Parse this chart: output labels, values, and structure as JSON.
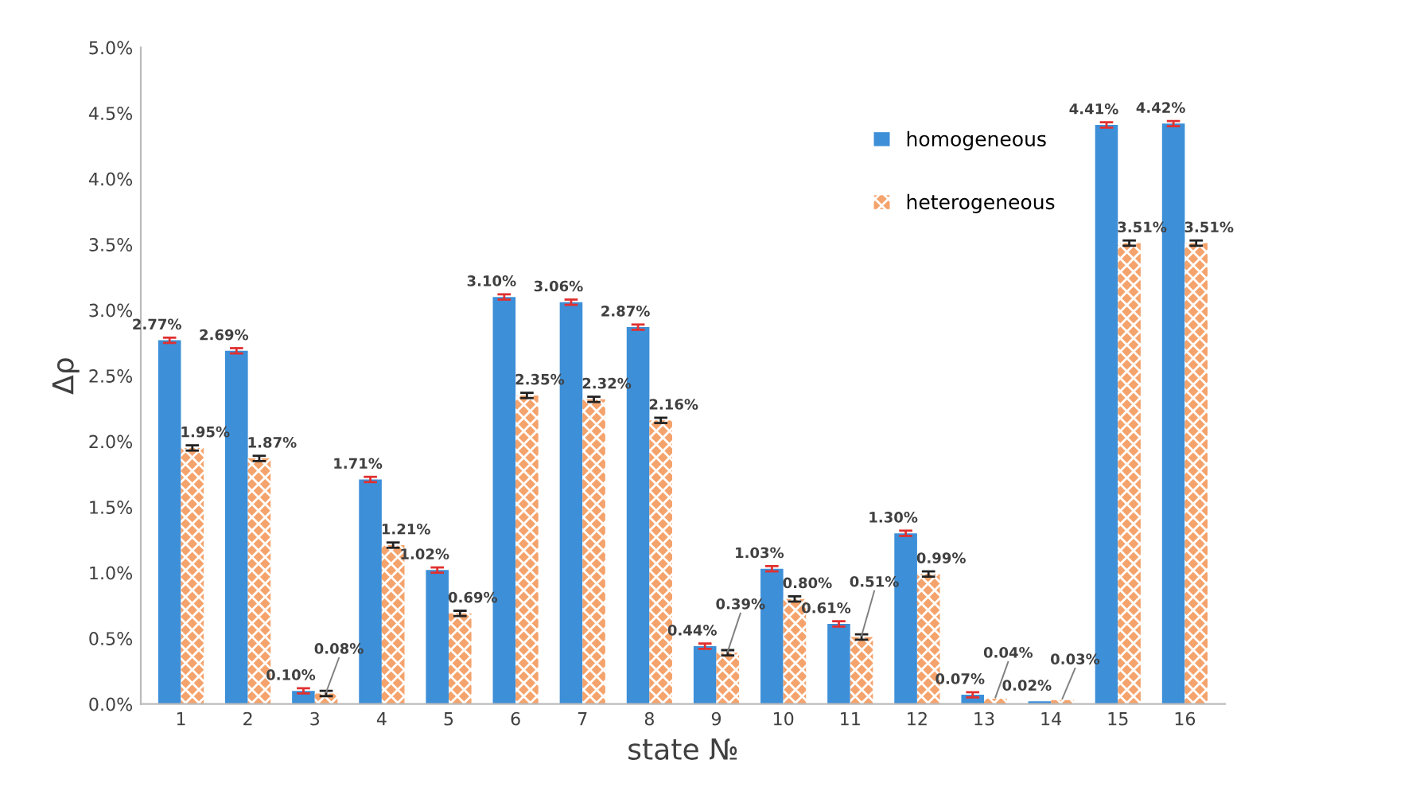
{
  "chart_data": {
    "type": "bar",
    "xlabel": "state №",
    "ylabel": "Δρ",
    "categories": [
      "1",
      "2",
      "3",
      "4",
      "5",
      "6",
      "7",
      "8",
      "9",
      "10",
      "11",
      "12",
      "13",
      "14",
      "15",
      "16"
    ],
    "series": [
      {
        "name": "homogeneous",
        "color": "#3d8fd8",
        "values": [
          2.77,
          2.69,
          0.1,
          1.71,
          1.02,
          3.1,
          3.06,
          2.87,
          0.44,
          1.03,
          0.61,
          1.3,
          0.07,
          0.02,
          4.41,
          4.42
        ],
        "errors": [
          0.02,
          0.02,
          0.02,
          0.02,
          0.02,
          0.02,
          0.02,
          0.02,
          0.02,
          0.02,
          0.02,
          0.02,
          0.02,
          null,
          0.02,
          0.02
        ],
        "value_labels": [
          "2.77%",
          "2.69%",
          "0.10%",
          "1.71%",
          "1.02%",
          "3.10%",
          "3.06%",
          "2.87%",
          "0.44%",
          "1.03%",
          "0.61%",
          "1.30%",
          "0.07%",
          "0.02%",
          "4.41%",
          "4.42%"
        ]
      },
      {
        "name": "heterogeneous",
        "color": "#f5a36c",
        "values": [
          1.95,
          1.87,
          0.08,
          1.21,
          0.69,
          2.35,
          2.32,
          2.16,
          0.39,
          0.8,
          0.51,
          0.99,
          0.04,
          0.03,
          3.51,
          3.51
        ],
        "errors": [
          0.02,
          0.02,
          0.02,
          0.02,
          0.02,
          0.02,
          0.02,
          0.02,
          0.02,
          0.02,
          0.02,
          0.02,
          null,
          null,
          0.02,
          0.02
        ],
        "value_labels": [
          "1.95%",
          "1.87%",
          "0.08%",
          "1.21%",
          "0.69%",
          "2.35%",
          "2.32%",
          "2.16%",
          "0.39%",
          "0.80%",
          "0.51%",
          "0.99%",
          "0.04%",
          "0.03%",
          "3.51%",
          "3.51%"
        ]
      }
    ],
    "ylim": [
      0,
      5
    ],
    "yticks": [
      {
        "value": 0,
        "label": "0.0%"
      },
      {
        "value": 0.5,
        "label": "0.5%"
      },
      {
        "value": 1,
        "label": "1.0%"
      },
      {
        "value": 1.5,
        "label": "1.5%"
      },
      {
        "value": 2,
        "label": "2.0%"
      },
      {
        "value": 2.5,
        "label": "2.5%"
      },
      {
        "value": 3,
        "label": "3.0%"
      },
      {
        "value": 3.5,
        "label": "3.5%"
      },
      {
        "value": 4,
        "label": "4.0%"
      },
      {
        "value": 4.5,
        "label": "4.5%"
      },
      {
        "value": 5,
        "label": "5.0%"
      }
    ],
    "grid": false,
    "legend": "top right"
  }
}
